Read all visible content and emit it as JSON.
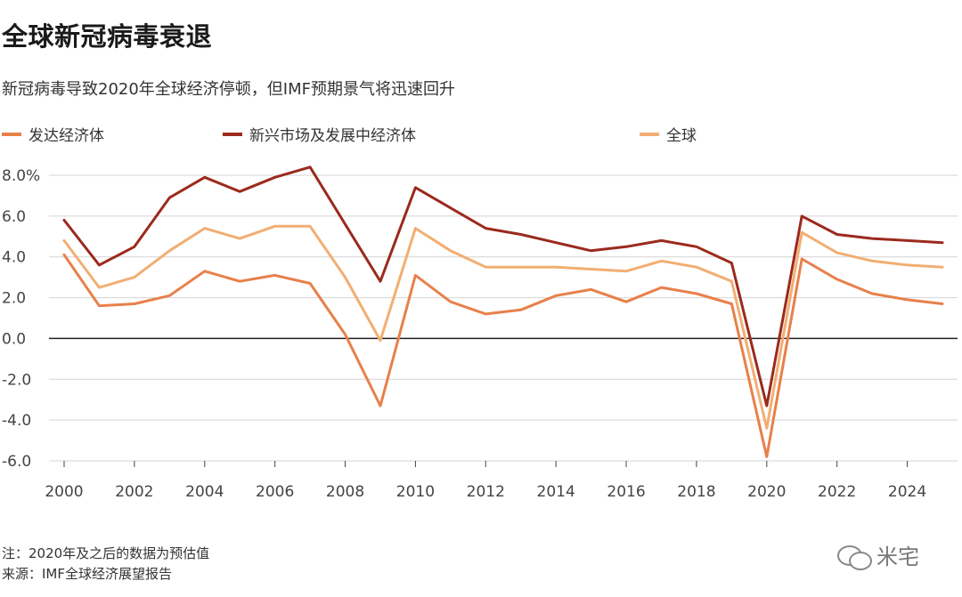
{
  "title": "全球新冠病毒衰退",
  "subtitle": "新冠病毒导致2020年全球经济停顿，但IMF预期景气将迅速回升",
  "legend": [
    {
      "label": "发达经济体",
      "color": "#e8804a"
    },
    {
      "label": "新兴市场及发展中经济体",
      "color": "#9b2a1d"
    },
    {
      "label": "全球",
      "color": "#f2ae72"
    }
  ],
  "notes": {
    "note": "注：2020年及之后的数据为预估值",
    "source": "来源：IMF全球经济展望报告"
  },
  "watermark": {
    "text": "米宅",
    "icon": "wechat-icon"
  },
  "chart_data": {
    "type": "line",
    "x": [
      2000,
      2001,
      2002,
      2003,
      2004,
      2005,
      2006,
      2007,
      2008,
      2009,
      2010,
      2011,
      2012,
      2013,
      2014,
      2015,
      2016,
      2017,
      2018,
      2019,
      2020,
      2021,
      2022,
      2023,
      2024,
      2025
    ],
    "series": [
      {
        "name": "发达经济体",
        "color": "#e8804a",
        "values": [
          4.1,
          1.6,
          1.7,
          2.1,
          3.3,
          2.8,
          3.1,
          2.7,
          0.2,
          -3.3,
          3.1,
          1.8,
          1.2,
          1.4,
          2.1,
          2.4,
          1.8,
          2.5,
          2.2,
          1.7,
          -5.8,
          3.9,
          2.9,
          2.2,
          1.9,
          1.7
        ]
      },
      {
        "name": "新兴市场及发展中经济体",
        "color": "#9b2a1d",
        "values": [
          5.8,
          3.6,
          4.5,
          6.9,
          7.9,
          7.2,
          7.9,
          8.4,
          5.6,
          2.8,
          7.4,
          6.4,
          5.4,
          5.1,
          4.7,
          4.3,
          4.5,
          4.8,
          4.5,
          3.7,
          -3.3,
          6.0,
          5.1,
          4.9,
          4.8,
          4.7
        ]
      },
      {
        "name": "全球",
        "color": "#f2ae72",
        "values": [
          4.8,
          2.5,
          3.0,
          4.3,
          5.4,
          4.9,
          5.5,
          5.5,
          3.0,
          -0.1,
          5.4,
          4.3,
          3.5,
          3.5,
          3.5,
          3.4,
          3.3,
          3.8,
          3.5,
          2.8,
          -4.4,
          5.2,
          4.2,
          3.8,
          3.6,
          3.5
        ]
      }
    ],
    "ylim": [
      -6,
      8
    ],
    "y_ticks": [
      8,
      6,
      4,
      2,
      0,
      -2,
      -4,
      -6
    ],
    "y_tick_labels": [
      "8.0%",
      "6.0",
      "4.0",
      "2.0",
      "0.0",
      "-2.0",
      "-4.0",
      "-6.0"
    ],
    "x_ticks": [
      2000,
      2002,
      2004,
      2006,
      2008,
      2010,
      2012,
      2014,
      2016,
      2018,
      2020,
      2022,
      2024
    ],
    "x_tick_labels": [
      "2000",
      "2002",
      "2004",
      "2006",
      "2008",
      "2010",
      "2012",
      "2014",
      "2016",
      "2018",
      "2020",
      "2022",
      "2024"
    ],
    "grid": true,
    "legend_position": "top"
  }
}
